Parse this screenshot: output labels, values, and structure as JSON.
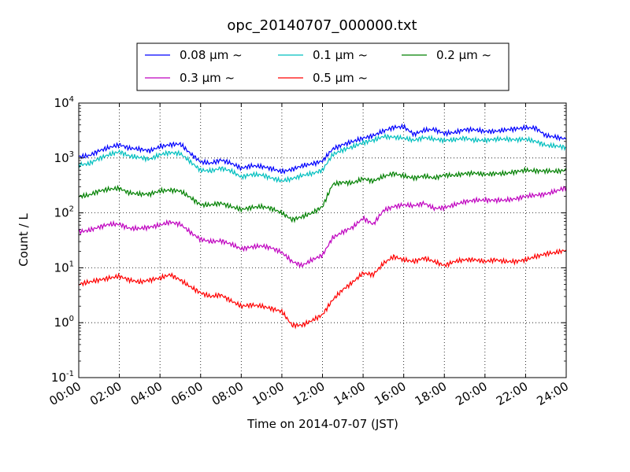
{
  "chart_data": {
    "type": "line",
    "title": "opc_20140707_000000.txt",
    "xlabel": "Time on 2014-07-07 (JST)",
    "ylabel": "Count / L",
    "xlim_hours": [
      0,
      24
    ],
    "x_ticks": [
      "00:00",
      "02:00",
      "04:00",
      "06:00",
      "08:00",
      "10:00",
      "12:00",
      "14:00",
      "16:00",
      "18:00",
      "20:00",
      "22:00",
      "24:00"
    ],
    "y_scale": "log",
    "ylim": [
      0.1,
      10000
    ],
    "y_ticks": [
      {
        "base": "10",
        "exp": "-1"
      },
      {
        "base": "10",
        "exp": "0"
      },
      {
        "base": "10",
        "exp": "1"
      },
      {
        "base": "10",
        "exp": "2"
      },
      {
        "base": "10",
        "exp": "3"
      },
      {
        "base": "10",
        "exp": "4"
      }
    ],
    "grid": true,
    "legend_position": "top-center",
    "x_hours": [
      0,
      0.5,
      1,
      1.5,
      2,
      2.5,
      3,
      3.5,
      4,
      4.5,
      5,
      5.5,
      6,
      6.5,
      7,
      7.5,
      8,
      8.5,
      9,
      9.5,
      10,
      10.5,
      11,
      11.5,
      12,
      12.5,
      13,
      13.5,
      14,
      14.5,
      15,
      15.5,
      16,
      16.5,
      17,
      17.5,
      18,
      18.5,
      19,
      19.5,
      20,
      20.5,
      21,
      21.5,
      22,
      22.5,
      23,
      23.5,
      24
    ],
    "series": [
      {
        "name": "0.08 μm ~",
        "color": "#0000ff",
        "values": [
          1050,
          1100,
          1350,
          1550,
          1750,
          1500,
          1450,
          1350,
          1600,
          1750,
          1800,
          1200,
          850,
          800,
          920,
          800,
          650,
          720,
          700,
          640,
          560,
          620,
          720,
          780,
          880,
          1450,
          1750,
          2000,
          2300,
          2550,
          3100,
          3600,
          3700,
          2700,
          3200,
          3300,
          2800,
          2900,
          3300,
          3250,
          3050,
          3050,
          3250,
          3400,
          3550,
          3500,
          2550,
          2400,
          2200
        ]
      },
      {
        "name": "0.1 μm ~",
        "color": "#00bfbf",
        "values": [
          750,
          780,
          980,
          1150,
          1300,
          1080,
          1020,
          950,
          1150,
          1250,
          1200,
          850,
          600,
          580,
          650,
          580,
          450,
          500,
          490,
          430,
          380,
          420,
          480,
          520,
          600,
          1150,
          1400,
          1600,
          1900,
          2100,
          2450,
          2400,
          2300,
          2100,
          2350,
          2200,
          2100,
          2150,
          2300,
          2100,
          2100,
          2200,
          2200,
          2150,
          2200,
          2000,
          1700,
          1650,
          1550
        ]
      },
      {
        "name": "0.2 μm ~",
        "color": "#008000",
        "values": [
          200,
          210,
          250,
          270,
          280,
          230,
          220,
          220,
          250,
          260,
          250,
          190,
          140,
          140,
          150,
          130,
          115,
          125,
          130,
          120,
          100,
          75,
          85,
          100,
          130,
          330,
          360,
          350,
          420,
          380,
          460,
          520,
          470,
          430,
          470,
          430,
          490,
          480,
          520,
          530,
          500,
          520,
          520,
          560,
          600,
          580,
          580,
          570,
          600
        ]
      },
      {
        "name": "0.3 μm ~",
        "color": "#bf00bf",
        "values": [
          45,
          48,
          55,
          62,
          62,
          52,
          52,
          55,
          60,
          68,
          62,
          44,
          33,
          30,
          31,
          27,
          22,
          24,
          25,
          23,
          19,
          13,
          11,
          14,
          17,
          35,
          45,
          55,
          80,
          62,
          110,
          130,
          140,
          135,
          150,
          120,
          125,
          140,
          160,
          170,
          170,
          170,
          170,
          180,
          200,
          210,
          220,
          250,
          290
        ]
      },
      {
        "name": "0.5 μm ~",
        "color": "#ff0000",
        "values": [
          5,
          5.5,
          6,
          6.5,
          7,
          6,
          5.5,
          6,
          6.5,
          7.5,
          6,
          4.5,
          3.5,
          3,
          3.2,
          2.5,
          2,
          2.1,
          2,
          1.8,
          1.6,
          0.9,
          0.9,
          1.1,
          1.4,
          2.6,
          4,
          5.5,
          8,
          7.5,
          12,
          16,
          14,
          13,
          15,
          13,
          11,
          13,
          14,
          14,
          13,
          14,
          13,
          13,
          14,
          16,
          18,
          19,
          21
        ]
      }
    ]
  }
}
